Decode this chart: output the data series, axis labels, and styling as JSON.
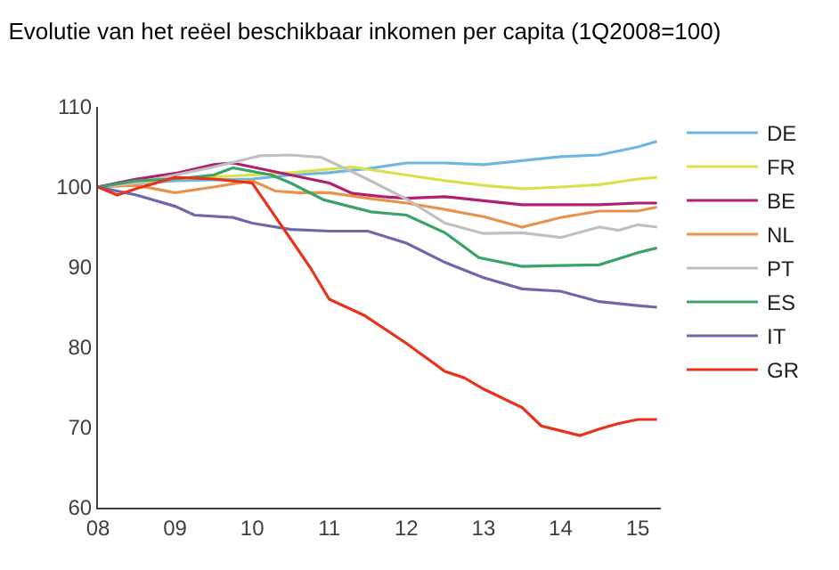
{
  "chart_data": {
    "type": "line",
    "title": "Evolutie van het reëel beschikbaar inkomen per capita (1Q2008=100)",
    "xlim": [
      2008,
      2015.3
    ],
    "xticks": [
      {
        "value": 2008,
        "label": "08"
      },
      {
        "value": 2009,
        "label": "09"
      },
      {
        "value": 2010,
        "label": "10"
      },
      {
        "value": 2011,
        "label": "11"
      },
      {
        "value": 2012,
        "label": "12"
      },
      {
        "value": 2013,
        "label": "13"
      },
      {
        "value": 2014,
        "label": "14"
      },
      {
        "value": 2015,
        "label": "15"
      }
    ],
    "ylim": [
      60,
      110
    ],
    "yticks": [
      60,
      70,
      80,
      90,
      100,
      110
    ],
    "grid": false,
    "legend": "right",
    "marker": "none",
    "line_style": "solid",
    "series": [
      {
        "name": "DE",
        "color": "#6fb7e0",
        "x": [
          2008,
          2009,
          2010,
          2010.5,
          2011,
          2011.5,
          2012,
          2012.5,
          2013,
          2013.5,
          2014,
          2014.5,
          2015,
          2015.25
        ],
        "values": [
          100,
          100.8,
          101,
          101.5,
          101.8,
          102.3,
          103,
          103,
          102.8,
          103.3,
          103.8,
          104,
          105,
          105.7
        ]
      },
      {
        "name": "FR",
        "color": "#d9e04a",
        "x": [
          2008,
          2008.5,
          2009,
          2010,
          2010.5,
          2011.3,
          2012,
          2012.5,
          2013,
          2013.5,
          2014,
          2014.5,
          2015,
          2015.25
        ],
        "values": [
          100,
          100.5,
          101,
          101.5,
          101.8,
          102.5,
          101.5,
          100.8,
          100.2,
          99.8,
          100,
          100.3,
          101,
          101.2
        ]
      },
      {
        "name": "BE",
        "color": "#b0206e",
        "x": [
          2008,
          2008.5,
          2009,
          2009.5,
          2009.75,
          2010.5,
          2011,
          2011.3,
          2011.7,
          2012,
          2012.5,
          2013,
          2013.5,
          2014,
          2014.5,
          2015,
          2015.25
        ],
        "values": [
          100,
          101,
          101.7,
          102.8,
          103,
          101.5,
          100.5,
          99.2,
          98.8,
          98.6,
          98.8,
          98.3,
          97.8,
          97.8,
          97.8,
          98,
          98
        ]
      },
      {
        "name": "NL",
        "color": "#e8924a",
        "x": [
          2008,
          2008.5,
          2009,
          2009.5,
          2010,
          2010.3,
          2010.6,
          2011,
          2011.5,
          2012,
          2012.5,
          2013,
          2013.5,
          2014,
          2014.5,
          2015,
          2015.25
        ],
        "values": [
          100,
          100.2,
          99.3,
          100,
          100.8,
          99.5,
          99.3,
          99.3,
          98.6,
          98,
          97.2,
          96.3,
          95,
          96.2,
          97,
          97,
          97.5
        ]
      },
      {
        "name": "PT",
        "color": "#c0c0c0",
        "x": [
          2008,
          2008.5,
          2009,
          2009.5,
          2010.1,
          2010.5,
          2010.9,
          2011.45,
          2012,
          2012.5,
          2013,
          2013.5,
          2014,
          2014.5,
          2014.75,
          2015,
          2015.25
        ],
        "values": [
          100,
          100.5,
          101.5,
          102.5,
          103.9,
          104,
          103.7,
          101.2,
          98.5,
          95.5,
          94.2,
          94.3,
          93.7,
          95,
          94.6,
          95.3,
          95
        ]
      },
      {
        "name": "ES",
        "color": "#3aa36a",
        "x": [
          2008,
          2008.5,
          2009,
          2009.5,
          2009.75,
          2010.25,
          2010.5,
          2010.93,
          2011.54,
          2012,
          2012.5,
          2012.94,
          2013.5,
          2014,
          2014.5,
          2015,
          2015.25
        ],
        "values": [
          100,
          100.8,
          101,
          101.5,
          102.4,
          101.5,
          100.5,
          98.4,
          96.9,
          96.5,
          94.3,
          91.2,
          90.1,
          90.2,
          90.3,
          91.8,
          92.4
        ]
      },
      {
        "name": "IT",
        "color": "#6a6aa8",
        "x": [
          2008,
          2008.5,
          2009,
          2009.25,
          2009.75,
          2010,
          2010.5,
          2011,
          2011.5,
          2012,
          2012.5,
          2013,
          2013.5,
          2014,
          2014.5,
          2015,
          2015.25
        ],
        "values": [
          100,
          99,
          97.6,
          96.5,
          96.2,
          95.5,
          94.7,
          94.5,
          94.5,
          93,
          90.6,
          88.7,
          87.3,
          87,
          85.7,
          85.2,
          85
        ]
      },
      {
        "name": "GR",
        "color": "#e8321e",
        "x": [
          2008,
          2008.25,
          2008.5,
          2009,
          2009.5,
          2010,
          2010.5,
          2010.75,
          2011,
          2011.45,
          2012,
          2012.5,
          2012.75,
          2013,
          2013.5,
          2013.75,
          2014,
          2014.25,
          2014.5,
          2014.75,
          2015,
          2015.25
        ],
        "values": [
          100,
          99,
          99.8,
          101.2,
          101,
          100.5,
          93.5,
          90,
          86,
          84,
          80.5,
          77,
          76.2,
          74.8,
          72.5,
          70.2,
          69.6,
          69,
          69.8,
          70.5,
          71,
          71
        ]
      }
    ]
  }
}
